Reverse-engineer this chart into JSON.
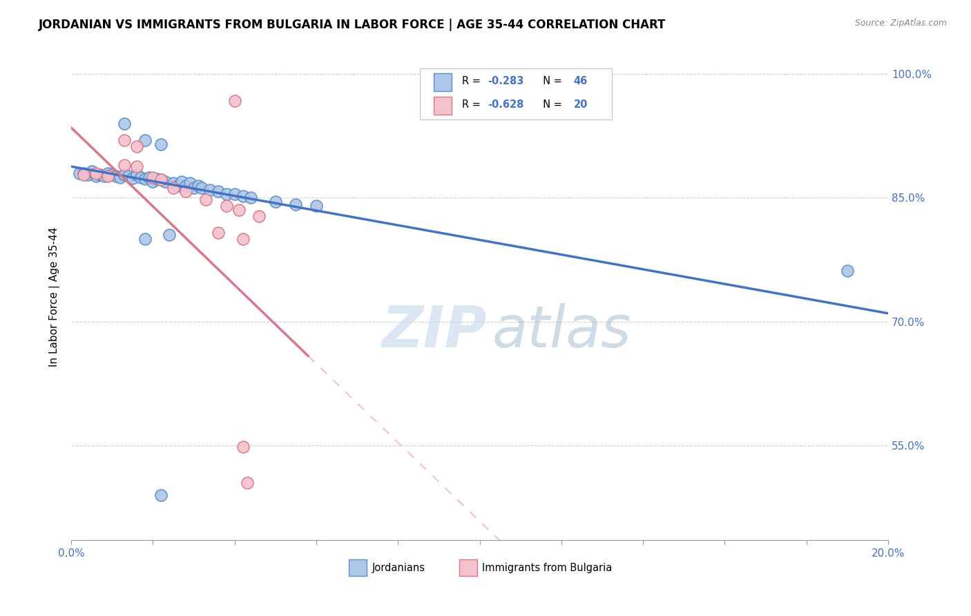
{
  "title": "JORDANIAN VS IMMIGRANTS FROM BULGARIA IN LABOR FORCE | AGE 35-44 CORRELATION CHART",
  "source": "Source: ZipAtlas.com",
  "ylabel": "In Labor Force | Age 35-44",
  "ytick_vals": [
    1.0,
    0.85,
    0.7,
    0.55
  ],
  "ytick_labels": [
    "100.0%",
    "85.0%",
    "70.0%",
    "55.0%"
  ],
  "watermark_zip": "ZIP",
  "watermark_atlas": "atlas",
  "legend_r1": "R = -0.283",
  "legend_n1": "N = 46",
  "legend_r2": "R = -0.628",
  "legend_n2": "N = 20",
  "blue_color": "#aec6e8",
  "blue_edge_color": "#5b8fc9",
  "blue_line_color": "#4472c4",
  "pink_color": "#f4c2cc",
  "pink_edge_color": "#d9788a",
  "pink_line_color": "#d9788a",
  "blue_scatter": [
    [
      0.002,
      0.88
    ],
    [
      0.003,
      0.88
    ],
    [
      0.004,
      0.878
    ],
    [
      0.005,
      0.882
    ],
    [
      0.006,
      0.876
    ],
    [
      0.007,
      0.878
    ],
    [
      0.008,
      0.876
    ],
    [
      0.009,
      0.88
    ],
    [
      0.01,
      0.878
    ],
    [
      0.011,
      0.876
    ],
    [
      0.012,
      0.875
    ],
    [
      0.013,
      0.878
    ],
    [
      0.014,
      0.876
    ],
    [
      0.015,
      0.874
    ],
    [
      0.016,
      0.878
    ],
    [
      0.017,
      0.875
    ],
    [
      0.018,
      0.873
    ],
    [
      0.019,
      0.875
    ],
    [
      0.02,
      0.87
    ],
    [
      0.021,
      0.873
    ],
    [
      0.022,
      0.872
    ],
    [
      0.023,
      0.87
    ],
    [
      0.025,
      0.868
    ],
    [
      0.026,
      0.865
    ],
    [
      0.027,
      0.87
    ],
    [
      0.028,
      0.865
    ],
    [
      0.029,
      0.868
    ],
    [
      0.03,
      0.862
    ],
    [
      0.031,
      0.865
    ],
    [
      0.032,
      0.862
    ],
    [
      0.034,
      0.86
    ],
    [
      0.036,
      0.858
    ],
    [
      0.038,
      0.855
    ],
    [
      0.04,
      0.855
    ],
    [
      0.042,
      0.852
    ],
    [
      0.044,
      0.85
    ],
    [
      0.05,
      0.845
    ],
    [
      0.055,
      0.842
    ],
    [
      0.06,
      0.84
    ],
    [
      0.018,
      0.92
    ],
    [
      0.022,
      0.915
    ],
    [
      0.013,
      0.94
    ],
    [
      0.018,
      0.8
    ],
    [
      0.024,
      0.805
    ],
    [
      0.022,
      0.49
    ],
    [
      0.19,
      0.762
    ]
  ],
  "pink_scatter": [
    [
      0.003,
      0.878
    ],
    [
      0.006,
      0.88
    ],
    [
      0.009,
      0.876
    ],
    [
      0.013,
      0.89
    ],
    [
      0.016,
      0.888
    ],
    [
      0.02,
      0.875
    ],
    [
      0.022,
      0.872
    ],
    [
      0.025,
      0.862
    ],
    [
      0.028,
      0.858
    ],
    [
      0.033,
      0.848
    ],
    [
      0.038,
      0.84
    ],
    [
      0.041,
      0.835
    ],
    [
      0.046,
      0.828
    ],
    [
      0.013,
      0.92
    ],
    [
      0.016,
      0.912
    ],
    [
      0.036,
      0.808
    ],
    [
      0.042,
      0.8
    ],
    [
      0.04,
      0.968
    ],
    [
      0.042,
      0.548
    ],
    [
      0.043,
      0.505
    ]
  ],
  "xmin": 0.0,
  "xmax": 0.2,
  "ymin": 0.435,
  "ymax": 1.025,
  "background_color": "#ffffff",
  "grid_color": "#d0d0d0"
}
